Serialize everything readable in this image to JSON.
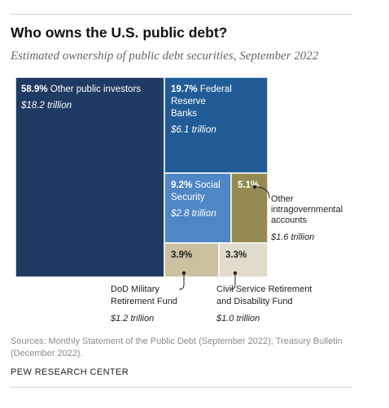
{
  "title": "Who owns the U.S. public debt?",
  "subtitle": "Estimated ownership of public debt securities, September 2022",
  "source": "Sources: Monthly Statement of the Public Debt (September 2022); Treasury Bulletin (December 2022).",
  "brand": "PEW RESEARCH CENTER",
  "chart_data": {
    "type": "treemap",
    "unit": "trillion",
    "items": [
      {
        "percent": "58.9%",
        "name": "Other public investors",
        "amount": "$18.2 trillion",
        "color": "#1f3b63",
        "text_color": "#ffffff"
      },
      {
        "percent": "19.7%",
        "name": "Federal Reserve Banks",
        "amount": "$6.1 trillion",
        "color": "#215c97",
        "text_color": "#ffffff"
      },
      {
        "percent": "9.2%",
        "name": "Social Security",
        "amount": "$2.8 trillion",
        "color": "#4f86c6",
        "text_color": "#ffffff"
      },
      {
        "percent": "5.1%",
        "name": "Other intragovernmental accounts",
        "amount": "$1.6 trillion",
        "color": "#948b53",
        "text_color": "#ffffff"
      },
      {
        "percent": "3.9%",
        "name": "DoD Military Retirement Fund",
        "amount": "$1.2 trillion",
        "color": "#cbc0a0",
        "text_color": "#222222"
      },
      {
        "percent": "3.3%",
        "name": "Civil Service Retirement and Disability Fund",
        "amount": "$1.0 trillion",
        "color": "#e0dbcb",
        "text_color": "#222222"
      }
    ]
  }
}
